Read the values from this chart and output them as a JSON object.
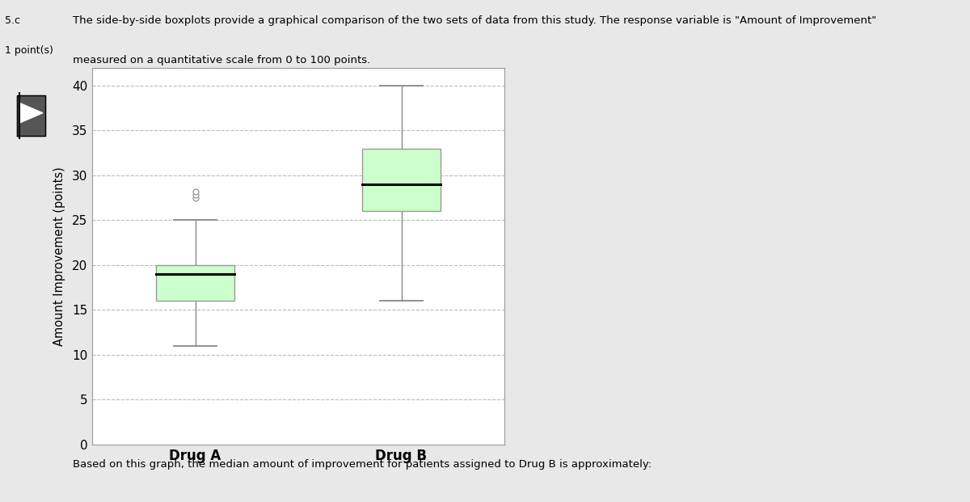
{
  "title_line1": "The side-by-side boxplots provide a graphical comparison of the two sets of data from this study. The response variable is \"Amount of Improvement\"",
  "title_line2": "measured on a quantitative scale from 0 to 100 points.",
  "section_label": "5.c",
  "section_points": "1 point(s)",
  "bottom_text": "Based on this graph, the median amount of improvement for patients assigned to Drug B is approximately:",
  "ylabel": "Amount Improvement (points)",
  "xlabel_drugA": "Drug A",
  "xlabel_drugB": "Drug B",
  "ylim": [
    0,
    42
  ],
  "yticks": [
    0,
    5,
    10,
    15,
    20,
    25,
    30,
    35,
    40
  ],
  "box_color": "#ccffcc",
  "box_edge_color": "#999999",
  "median_color": "black",
  "whisker_color": "#888888",
  "flier_color": "white",
  "flier_edge_color": "#888888",
  "drug_A": {
    "whisker_low": 11,
    "q1": 16,
    "median": 19,
    "q3": 20,
    "whisker_high": 25,
    "fliers": [
      27.5,
      27.8,
      28.2
    ]
  },
  "drug_B": {
    "whisker_low": 16,
    "q1": 26,
    "median": 29,
    "q3": 33,
    "whisker_high": 40
  },
  "page_bg_color": "#e8e8e8",
  "sidebar_bg_color": "#e8e8e8",
  "content_bg_color": "#ffffff",
  "plot_bg_color": "#ffffff",
  "grid_color": "#aaaaaa",
  "grid_style": "--",
  "grid_alpha": 0.8,
  "box_width": 0.38
}
